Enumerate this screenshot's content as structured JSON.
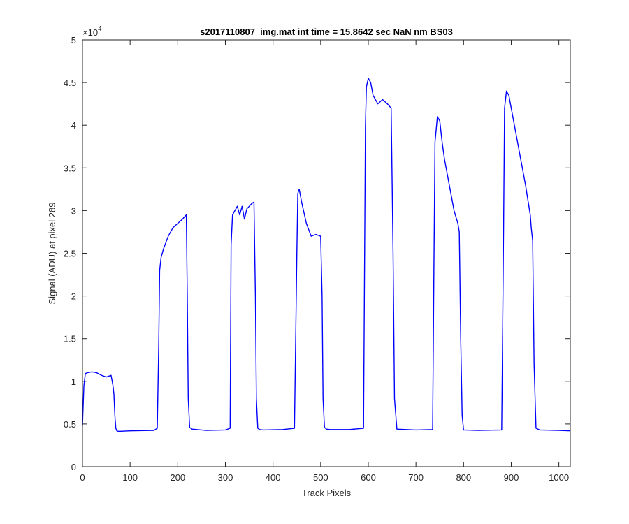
{
  "chart_data": {
    "type": "line",
    "title": "s2017110807_img.mat int time = 15.8642 sec  NaN nm BS03",
    "xlabel": "Track Pixels",
    "ylabel": "Signal (ADU) at pixel 289",
    "xlim": [
      0,
      1024
    ],
    "ylim": [
      0,
      50000
    ],
    "x_ticks": [
      0,
      100,
      200,
      300,
      400,
      500,
      600,
      700,
      800,
      900,
      1000
    ],
    "y_ticks": [
      0,
      0.5,
      1,
      1.5,
      2,
      2.5,
      3,
      3.5,
      4,
      4.5,
      5
    ],
    "y_exponent_base": "×10",
    "y_exponent_power": "4",
    "grid": false,
    "line_color": "#0000ff",
    "series": [
      {
        "x": [
          0,
          3,
          6,
          10,
          20,
          30,
          40,
          50,
          60,
          64,
          66,
          68,
          70,
          72,
          75,
          80,
          100,
          150,
          157,
          160,
          162,
          165,
          170,
          180,
          190,
          200,
          210,
          218,
          220,
          222,
          225,
          230,
          260,
          300,
          310,
          312,
          315,
          320,
          325,
          330,
          335,
          340,
          345,
          350,
          355,
          360,
          363,
          365,
          368,
          372,
          380,
          420,
          445,
          450,
          452,
          455,
          460,
          470,
          480,
          490,
          500,
          503,
          505,
          508,
          512,
          520,
          560,
          590,
          594,
          596,
          600,
          605,
          610,
          620,
          630,
          640,
          648,
          652,
          655,
          660,
          700,
          735,
          738,
          740,
          745,
          750,
          755,
          760,
          770,
          780,
          788,
          791,
          794,
          797,
          800,
          830,
          880,
          884,
          886,
          890,
          895,
          900,
          910,
          920,
          930,
          940,
          942,
          945,
          948,
          952,
          960,
          1000,
          1024
        ],
        "y": [
          4800,
          9500,
          10900,
          11000,
          11100,
          11000,
          10700,
          10500,
          10700,
          9500,
          8500,
          6000,
          4500,
          4200,
          4150,
          4150,
          4200,
          4250,
          4500,
          14000,
          23000,
          24500,
          25500,
          27000,
          28000,
          28500,
          29000,
          29500,
          20000,
          8000,
          4600,
          4400,
          4250,
          4300,
          4500,
          26000,
          29500,
          30000,
          30500,
          29500,
          30500,
          29000,
          30200,
          30500,
          30800,
          31000,
          20000,
          8000,
          4500,
          4350,
          4300,
          4350,
          4500,
          25000,
          32000,
          32500,
          31000,
          28500,
          27000,
          27200,
          27000,
          20000,
          8000,
          4600,
          4400,
          4350,
          4350,
          4500,
          40000,
          44500,
          45500,
          45000,
          43500,
          42500,
          43000,
          42500,
          42000,
          25000,
          8000,
          4400,
          4300,
          4350,
          25000,
          38000,
          41000,
          40500,
          38000,
          36000,
          33000,
          30000,
          28500,
          27500,
          15000,
          6000,
          4300,
          4250,
          4300,
          28000,
          42000,
          44000,
          43500,
          42000,
          39000,
          36000,
          33000,
          29500,
          28000,
          26500,
          12000,
          4500,
          4300,
          4250,
          4200
        ]
      }
    ]
  }
}
